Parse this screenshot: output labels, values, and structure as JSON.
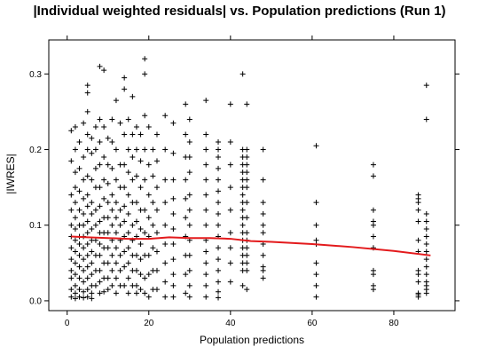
{
  "chart_data": {
    "type": "scatter",
    "title": "|Individual weighted residuals| vs. Population predictions (Run 1)",
    "xlabel": "Population predictions",
    "ylabel": "|IWRES|",
    "xlim": [
      -4.5,
      95
    ],
    "ylim": [
      -0.013,
      0.345
    ],
    "x_ticks": [
      0,
      20,
      40,
      60,
      80
    ],
    "y_ticks": [
      0.0,
      0.1,
      0.2,
      0.3
    ],
    "grid": false,
    "marker": "+",
    "point_color": "#000000",
    "smooth_color": "#e31a1c",
    "smooth": {
      "x": [
        1,
        5,
        10,
        15,
        20,
        25,
        30,
        35,
        40,
        45,
        50,
        60,
        70,
        80,
        89
      ],
      "y": [
        0.085,
        0.084,
        0.083,
        0.082,
        0.082,
        0.084,
        0.083,
        0.083,
        0.082,
        0.079,
        0.078,
        0.075,
        0.071,
        0.066,
        0.06
      ]
    },
    "points": {
      "x": [
        1,
        1,
        1,
        1,
        1,
        1,
        1,
        1,
        1,
        1,
        1,
        1,
        2,
        2,
        2,
        2,
        2,
        2,
        2,
        2,
        2,
        2,
        2,
        2,
        2,
        2,
        3,
        3,
        3,
        3,
        3,
        3,
        3,
        3,
        3,
        3,
        3,
        3,
        4,
        4,
        4,
        4,
        4,
        4,
        4,
        4,
        4,
        4,
        4,
        4,
        4,
        5,
        5,
        5,
        5,
        5,
        5,
        5,
        5,
        5,
        5,
        5,
        5,
        5,
        5,
        5,
        5,
        6,
        6,
        6,
        6,
        6,
        6,
        6,
        6,
        6,
        6,
        6,
        6,
        6,
        7,
        7,
        7,
        7,
        7,
        7,
        7,
        7,
        7,
        7,
        8,
        8,
        8,
        8,
        8,
        8,
        8,
        8,
        8,
        8,
        8,
        8,
        8,
        9,
        9,
        9,
        9,
        9,
        9,
        9,
        9,
        9,
        9,
        9,
        10,
        10,
        10,
        10,
        10,
        10,
        10,
        10,
        10,
        10,
        11,
        11,
        11,
        11,
        11,
        11,
        11,
        11,
        11,
        11,
        12,
        12,
        12,
        12,
        12,
        12,
        12,
        12,
        12,
        12,
        13,
        13,
        13,
        13,
        13,
        13,
        13,
        13,
        13,
        14,
        14,
        14,
        14,
        14,
        14,
        14,
        14,
        14,
        14,
        14,
        15,
        15,
        15,
        15,
        15,
        15,
        15,
        15,
        15,
        15,
        16,
        16,
        16,
        16,
        16,
        16,
        16,
        16,
        16,
        16,
        17,
        17,
        17,
        17,
        17,
        17,
        17,
        17,
        17,
        17,
        18,
        18,
        18,
        18,
        18,
        18,
        18,
        18,
        18,
        19,
        19,
        19,
        19,
        19,
        19,
        19,
        19,
        19,
        19,
        20,
        20,
        20,
        20,
        20,
        20,
        20,
        20,
        21,
        21,
        21,
        21,
        21,
        21,
        21,
        22,
        22,
        22,
        22,
        22,
        22,
        22,
        22,
        24,
        24,
        24,
        24,
        24,
        24,
        24,
        24,
        24,
        26,
        26,
        26,
        26,
        26,
        26,
        26,
        26,
        26,
        26,
        26,
        29,
        29,
        29,
        29,
        29,
        29,
        29,
        29,
        29,
        29,
        30,
        30,
        30,
        30,
        30,
        30,
        30,
        30,
        30,
        30,
        30,
        30,
        34,
        34,
        34,
        34,
        34,
        34,
        34,
        34,
        34,
        34,
        34,
        34,
        34,
        34,
        37,
        37,
        37,
        37,
        37,
        37,
        37,
        37,
        37,
        37,
        37,
        37,
        37,
        37,
        37,
        37,
        40,
        40,
        40,
        40,
        40,
        40,
        40,
        40,
        40,
        43,
        43,
        43,
        43,
        43,
        43,
        43,
        43,
        43,
        43,
        43,
        43,
        43,
        43,
        43,
        43,
        43,
        43,
        43,
        44,
        44,
        44,
        44,
        44,
        44,
        44,
        44,
        44,
        44,
        44,
        44,
        44,
        44,
        44,
        44,
        48,
        48,
        48,
        48,
        48,
        48,
        48,
        48,
        48,
        48,
        48,
        61,
        61,
        61,
        61,
        61,
        61,
        61,
        61,
        61,
        75,
        75,
        75,
        75,
        75,
        75,
        75,
        75,
        75,
        75,
        75,
        86,
        86,
        86,
        86,
        86,
        86,
        86,
        86,
        86,
        86,
        86,
        86,
        86,
        88,
        88,
        88,
        88,
        88,
        88,
        88,
        88,
        88,
        88,
        88,
        88,
        88,
        88,
        88
      ],
      "y": [
        0.225,
        0.185,
        0.14,
        0.12,
        0.1,
        0.085,
        0.07,
        0.055,
        0.04,
        0.03,
        0.015,
        0.005,
        0.23,
        0.2,
        0.17,
        0.15,
        0.13,
        0.11,
        0.095,
        0.08,
        0.065,
        0.05,
        0.035,
        0.02,
        0.01,
        0.003,
        0.21,
        0.175,
        0.145,
        0.12,
        0.1,
        0.085,
        0.075,
        0.06,
        0.045,
        0.03,
        0.015,
        0.005,
        0.235,
        0.19,
        0.16,
        0.135,
        0.115,
        0.1,
        0.085,
        0.07,
        0.055,
        0.04,
        0.025,
        0.012,
        0.004,
        0.285,
        0.275,
        0.25,
        0.22,
        0.2,
        0.165,
        0.14,
        0.125,
        0.105,
        0.09,
        0.075,
        0.06,
        0.045,
        0.03,
        0.015,
        0.005,
        0.215,
        0.195,
        0.16,
        0.13,
        0.115,
        0.095,
        0.08,
        0.065,
        0.05,
        0.035,
        0.02,
        0.01,
        0.003,
        0.23,
        0.2,
        0.175,
        0.15,
        0.12,
        0.1,
        0.08,
        0.06,
        0.04,
        0.02,
        0.31,
        0.24,
        0.21,
        0.18,
        0.15,
        0.125,
        0.105,
        0.09,
        0.075,
        0.06,
        0.04,
        0.025,
        0.01,
        0.305,
        0.23,
        0.19,
        0.16,
        0.135,
        0.11,
        0.09,
        0.07,
        0.05,
        0.03,
        0.012,
        0.215,
        0.18,
        0.155,
        0.13,
        0.11,
        0.09,
        0.07,
        0.05,
        0.03,
        0.015,
        0.24,
        0.21,
        0.175,
        0.14,
        0.12,
        0.1,
        0.08,
        0.06,
        0.04,
        0.02,
        0.265,
        0.2,
        0.16,
        0.13,
        0.11,
        0.09,
        0.07,
        0.05,
        0.03,
        0.01,
        0.235,
        0.18,
        0.15,
        0.12,
        0.1,
        0.08,
        0.06,
        0.04,
        0.02,
        0.295,
        0.28,
        0.22,
        0.18,
        0.15,
        0.125,
        0.105,
        0.085,
        0.065,
        0.045,
        0.02,
        0.24,
        0.2,
        0.17,
        0.14,
        0.115,
        0.09,
        0.07,
        0.05,
        0.03,
        0.01,
        0.27,
        0.22,
        0.19,
        0.16,
        0.13,
        0.1,
        0.08,
        0.06,
        0.04,
        0.02,
        0.23,
        0.2,
        0.165,
        0.13,
        0.105,
        0.085,
        0.06,
        0.04,
        0.02,
        0.01,
        0.22,
        0.185,
        0.15,
        0.12,
        0.095,
        0.075,
        0.055,
        0.035,
        0.015,
        0.32,
        0.3,
        0.245,
        0.2,
        0.16,
        0.12,
        0.09,
        0.06,
        0.03,
        0.01,
        0.23,
        0.18,
        0.14,
        0.11,
        0.085,
        0.06,
        0.035,
        0.005,
        0.2,
        0.165,
        0.13,
        0.1,
        0.07,
        0.04,
        0.015,
        0.22,
        0.185,
        0.15,
        0.12,
        0.09,
        0.065,
        0.04,
        0.015,
        0.245,
        0.2,
        0.16,
        0.13,
        0.1,
        0.075,
        0.05,
        0.025,
        0.005,
        0.235,
        0.195,
        0.16,
        0.135,
        0.115,
        0.095,
        0.075,
        0.055,
        0.035,
        0.02,
        0.005,
        0.26,
        0.22,
        0.19,
        0.16,
        0.135,
        0.11,
        0.085,
        0.06,
        0.035,
        0.01,
        0.24,
        0.21,
        0.19,
        0.17,
        0.14,
        0.12,
        0.1,
        0.08,
        0.06,
        0.04,
        0.02,
        0.005,
        0.265,
        0.22,
        0.2,
        0.18,
        0.16,
        0.14,
        0.12,
        0.1,
        0.08,
        0.065,
        0.05,
        0.035,
        0.02,
        0.005,
        0.21,
        0.2,
        0.19,
        0.175,
        0.16,
        0.145,
        0.13,
        0.115,
        0.1,
        0.085,
        0.07,
        0.055,
        0.04,
        0.025,
        0.012,
        0.004,
        0.26,
        0.21,
        0.18,
        0.15,
        0.12,
        0.09,
        0.07,
        0.05,
        0.025,
        0.3,
        0.2,
        0.19,
        0.18,
        0.17,
        0.16,
        0.15,
        0.14,
        0.13,
        0.12,
        0.11,
        0.1,
        0.09,
        0.08,
        0.07,
        0.06,
        0.05,
        0.04,
        0.02,
        0.26,
        0.2,
        0.19,
        0.18,
        0.17,
        0.16,
        0.15,
        0.13,
        0.11,
        0.09,
        0.08,
        0.07,
        0.06,
        0.05,
        0.04,
        0.015,
        0.2,
        0.16,
        0.13,
        0.115,
        0.1,
        0.09,
        0.075,
        0.06,
        0.045,
        0.04,
        0.03,
        0.205,
        0.13,
        0.1,
        0.08,
        0.075,
        0.05,
        0.035,
        0.02,
        0.005,
        0.18,
        0.165,
        0.12,
        0.105,
        0.1,
        0.085,
        0.07,
        0.04,
        0.035,
        0.02,
        0.015,
        0.14,
        0.135,
        0.13,
        0.12,
        0.105,
        0.08,
        0.065,
        0.04,
        0.035,
        0.025,
        0.01,
        0.008,
        0.005,
        0.285,
        0.24,
        0.115,
        0.105,
        0.095,
        0.085,
        0.075,
        0.065,
        0.055,
        0.045,
        0.035,
        0.025,
        0.02,
        0.015,
        0.01
      ]
    }
  }
}
